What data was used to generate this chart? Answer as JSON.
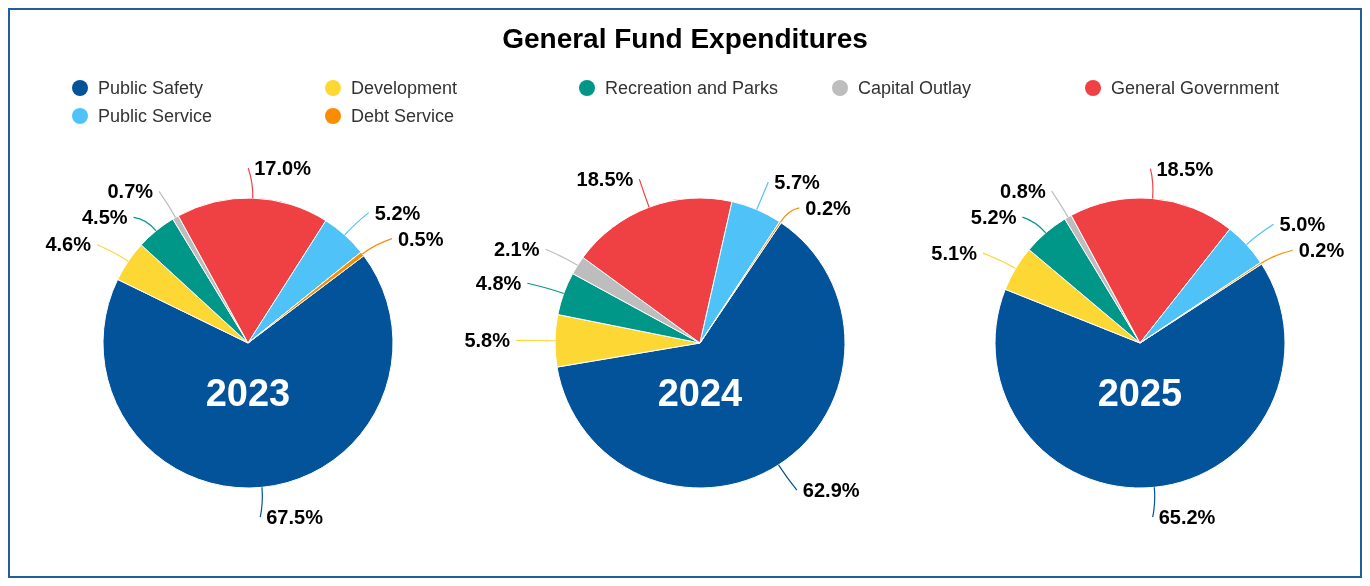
{
  "chart_data": {
    "type": "pie",
    "title": "General Fund Expenditures",
    "legend": "top",
    "categories": [
      "Public Safety",
      "Development",
      "Recreation and Parks",
      "Capital Outlay",
      "General Government",
      "Public Service",
      "Debt Service"
    ],
    "colors": [
      "#02539a",
      "#fdd835",
      "#009688",
      "#bdbdbd",
      "#ef4044",
      "#4fc3f7",
      "#fb8c00"
    ],
    "series": [
      {
        "name": "2023",
        "values": [
          67.5,
          4.6,
          4.5,
          0.7,
          17.0,
          5.2,
          0.5
        ],
        "value_labels": [
          "67.5%",
          "4.6%",
          "4.5%",
          "0.7%",
          "17.0%",
          "5.2%",
          "0.5%"
        ]
      },
      {
        "name": "2024",
        "values": [
          62.9,
          5.8,
          4.8,
          2.1,
          18.5,
          5.7,
          0.2
        ],
        "value_labels": [
          "62.9%",
          "5.8%",
          "4.8%",
          "2.1%",
          "18.5%",
          "5.7%",
          "0.2%"
        ]
      },
      {
        "name": "2025",
        "values": [
          65.2,
          5.1,
          5.2,
          0.8,
          18.5,
          5.0,
          0.2
        ],
        "value_labels": [
          "65.2%",
          "5.1%",
          "5.2%",
          "0.8%",
          "18.5%",
          "5.0%",
          "0.2%"
        ]
      }
    ]
  }
}
